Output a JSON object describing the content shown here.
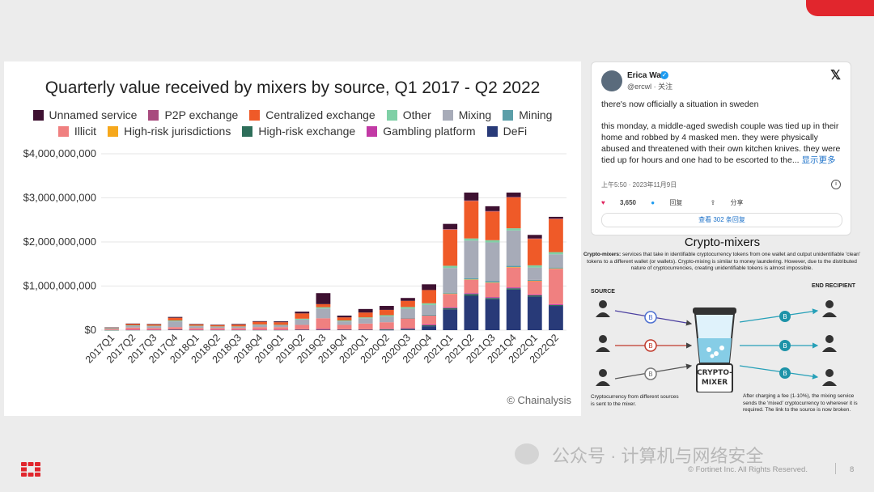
{
  "colors": {
    "unnamed_service": "#3e1131",
    "p2p_exchange": "#a84b7e",
    "centralized_exchange": "#ef5a28",
    "other": "#7fd0a6",
    "mixing": "#a7abb8",
    "mining": "#5b9ea8",
    "illicit": "#f08080",
    "high_risk_jurisdictions": "#f6a81c",
    "high_risk_exchange": "#2e6e5a",
    "gambling_platform": "#c23aa5",
    "defi": "#283a78",
    "brand_red": "#e1262d"
  },
  "chart_data": {
    "type": "bar",
    "stacked": true,
    "title": "Quarterly value received by mixers by source, Q1 2017 - Q2 2022",
    "xlabel": "",
    "ylabel": "",
    "ylim": [
      0,
      4000000000
    ],
    "yticks": [
      "$0",
      "$1,000,000,000",
      "$2,000,000,000",
      "$3,000,000,000",
      "$4,000,000,000"
    ],
    "categories": [
      "2017Q1",
      "2017Q2",
      "2017Q3",
      "2017Q4",
      "2018Q1",
      "2018Q2",
      "2018Q3",
      "2018Q4",
      "2019Q1",
      "2019Q2",
      "2019Q3",
      "2019Q4",
      "2020Q1",
      "2020Q2",
      "2020Q3",
      "2020Q4",
      "2021Q1",
      "2021Q2",
      "2021Q3",
      "2021Q4",
      "2022Q1",
      "2022Q2"
    ],
    "legend": {
      "row1": [
        "Unnamed service",
        "P2P exchange",
        "Centralized exchange",
        "Other",
        "Mixing",
        "Mining"
      ],
      "row2": [
        "Illicit",
        "High-risk jurisdictions",
        "High-risk exchange",
        "Gambling platform",
        "DeFi"
      ]
    },
    "series": [
      {
        "name": "DeFi",
        "color": "#283a78",
        "values": [
          0,
          0,
          0,
          0,
          0,
          0,
          0,
          0,
          0,
          0,
          0,
          0,
          0,
          5000000,
          15000000,
          90000000,
          470000000,
          780000000,
          700000000,
          920000000,
          760000000,
          550000000
        ]
      },
      {
        "name": "High-risk exchange",
        "color": "#2e6e5a",
        "values": [
          2000000,
          5000000,
          5000000,
          10000000,
          5000000,
          5000000,
          5000000,
          5000000,
          5000000,
          10000000,
          10000000,
          10000000,
          10000000,
          15000000,
          15000000,
          20000000,
          30000000,
          40000000,
          30000000,
          30000000,
          30000000,
          20000000
        ]
      },
      {
        "name": "Gambling platform",
        "color": "#c23aa5",
        "values": [
          0,
          5000000,
          5000000,
          10000000,
          5000000,
          5000000,
          5000000,
          5000000,
          5000000,
          10000000,
          20000000,
          10000000,
          10000000,
          10000000,
          15000000,
          20000000,
          20000000,
          20000000,
          20000000,
          20000000,
          20000000,
          20000000
        ]
      },
      {
        "name": "Illicit",
        "color": "#f08080",
        "values": [
          20000000,
          50000000,
          40000000,
          50000000,
          40000000,
          40000000,
          40000000,
          60000000,
          60000000,
          100000000,
          240000000,
          100000000,
          130000000,
          150000000,
          220000000,
          200000000,
          300000000,
          300000000,
          320000000,
          450000000,
          300000000,
          800000000
        ]
      },
      {
        "name": "High-risk jurisdictions",
        "color": "#f6a81c",
        "values": [
          0,
          0,
          0,
          0,
          0,
          0,
          0,
          0,
          0,
          0,
          0,
          0,
          0,
          0,
          0,
          0,
          10000000,
          10000000,
          10000000,
          10000000,
          10000000,
          10000000
        ]
      },
      {
        "name": "Mining",
        "color": "#5b9ea8",
        "values": [
          0,
          0,
          0,
          0,
          0,
          0,
          0,
          0,
          0,
          0,
          0,
          0,
          0,
          0,
          10000000,
          20000000,
          20000000,
          30000000,
          30000000,
          30000000,
          20000000,
          20000000
        ]
      },
      {
        "name": "Mixing",
        "color": "#a7abb8",
        "values": [
          20000000,
          40000000,
          40000000,
          130000000,
          40000000,
          30000000,
          30000000,
          50000000,
          40000000,
          120000000,
          220000000,
          80000000,
          120000000,
          130000000,
          210000000,
          220000000,
          560000000,
          850000000,
          880000000,
          800000000,
          280000000,
          300000000
        ]
      },
      {
        "name": "Other",
        "color": "#7fd0a6",
        "values": [
          5000000,
          10000000,
          10000000,
          20000000,
          10000000,
          5000000,
          5000000,
          10000000,
          10000000,
          20000000,
          30000000,
          20000000,
          20000000,
          30000000,
          40000000,
          40000000,
          50000000,
          50000000,
          50000000,
          50000000,
          50000000,
          50000000
        ]
      },
      {
        "name": "Centralized exchange",
        "color": "#ef5a28",
        "values": [
          10000000,
          30000000,
          30000000,
          60000000,
          30000000,
          30000000,
          40000000,
          60000000,
          60000000,
          120000000,
          70000000,
          70000000,
          110000000,
          120000000,
          140000000,
          300000000,
          820000000,
          850000000,
          650000000,
          700000000,
          600000000,
          750000000
        ]
      },
      {
        "name": "P2P exchange",
        "color": "#a84b7e",
        "values": [
          0,
          0,
          0,
          0,
          0,
          0,
          0,
          0,
          0,
          0,
          0,
          0,
          0,
          0,
          0,
          0,
          10000000,
          10000000,
          10000000,
          10000000,
          10000000,
          10000000
        ]
      },
      {
        "name": "Unnamed service",
        "color": "#3e1131",
        "values": [
          5000000,
          10000000,
          10000000,
          20000000,
          10000000,
          10000000,
          15000000,
          15000000,
          20000000,
          40000000,
          250000000,
          40000000,
          80000000,
          90000000,
          65000000,
          130000000,
          120000000,
          180000000,
          110000000,
          100000000,
          80000000,
          40000000
        ]
      }
    ]
  },
  "chart_watermark": "© Chainalysis",
  "tweet": {
    "name": "Erica Wall",
    "handle": "@ercwl · 关注",
    "line1": "there's now officially a situation in sweden",
    "body": "this monday, a middle-aged swedish couple was tied up in their home and robbed by 4 masked men. they were physically abused and threatened with their own kitchen knives. they were tied up for hours and one had to be escorted to the...",
    "show_more": "显示更多",
    "time": "上午5:50 · 2023年11月9日",
    "likes": "3,650",
    "reply_label": "回复",
    "share_label": "分享",
    "replies_button": "查看 302 条回复"
  },
  "crypto_mixers": {
    "title": "Crypto-mixers",
    "desc_bold": "Crypto-mixers:",
    "desc": " services that take in identifiable cryptocurrency tokens from one wallet and output unidentifiable 'clean' tokens to a different wallet (or wallets). Crypto-mixing is similar to money laundering. However, due to the distributed nature of cryptocurrencies, creating unidentifiable tokens is almost impossible.",
    "source_label": "SOURCE",
    "end_label": "END RECIPIENT",
    "mixer_label": "CRYPTO-MIXER",
    "caption_left": "Cryptocurrency from different sources is sent to the mixer.",
    "caption_right": "After charging a fee (1-10%), the mixing service sends the 'mixed' cryptocurrency to wherever it is required. The link to the source is now broken."
  },
  "footer": {
    "wechat": "公众号 · 计算机与网络安全",
    "copyright": "© Fortinet Inc. All Rights Reserved.",
    "page": "8"
  }
}
